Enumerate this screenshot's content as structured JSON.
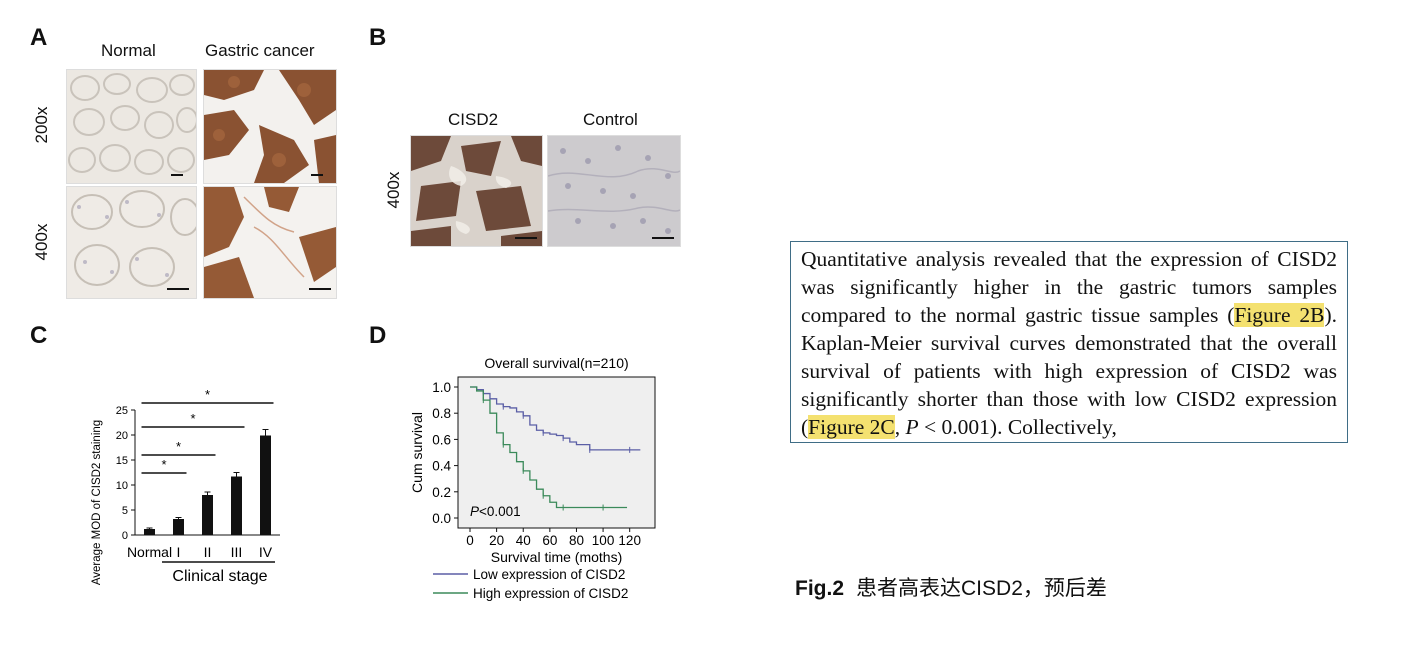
{
  "panel_a": {
    "letter": "A",
    "col_normal": "Normal",
    "col_cancer": "Gastric cancer",
    "row_200": "200x",
    "row_400": "400x"
  },
  "panel_b": {
    "letter": "B",
    "col_cisd2": "CISD2",
    "col_control": "Control",
    "row_400": "400x"
  },
  "panel_c": {
    "letter": "C",
    "ylabel": "Average MOD of CISD2 staining",
    "xlabel": "Clinical stage",
    "sig_marker": "*"
  },
  "panel_d": {
    "letter": "D",
    "title": "Overall survival(n=210)",
    "ylabel": "Cum survival",
    "xlabel": "Survival time (moths)",
    "pvalue": "<0.001",
    "pvalue_prefix": "P",
    "legend_low": "Low expression of CISD2",
    "legend_high": "High expression of CISD2"
  },
  "textbox": {
    "part1": "Quantitative analysis revealed that the expression of CISD2 was significantly higher in the gastric tumors samples compared to the normal gastric tissue samples (",
    "link1": "Figure 2B",
    "part2": "). Kaplan-Meier survival curves demonstrated that the overall survival of patients with high expression of CISD2 was significantly shorter than those with low CISD2 expression (",
    "link2": "Figure 2C",
    "part3": ", ",
    "p_italic": "P",
    "part4": " < 0.001). Collectively,"
  },
  "caption": {
    "fig_label": "Fig.2",
    "text": "患者高表达CISD2，预后差"
  },
  "chart_data": [
    {
      "type": "bar",
      "panel": "C",
      "categories": [
        "Normal",
        "I",
        "II",
        "III",
        "IV"
      ],
      "values": [
        1.2,
        3.2,
        8.0,
        11.7,
        19.9
      ],
      "errors": [
        0.2,
        0.3,
        0.6,
        0.8,
        1.2
      ],
      "ylim": [
        0,
        25
      ],
      "yticks": [
        0,
        5,
        10,
        15,
        20,
        25
      ],
      "ylabel": "Average MOD of CISD2 staining",
      "xlabel": "Clinical stage",
      "significance": [
        {
          "from": "Normal",
          "to": "I",
          "label": "*"
        },
        {
          "from": "Normal",
          "to": "II",
          "label": "*"
        },
        {
          "from": "Normal",
          "to": "III",
          "label": "*"
        },
        {
          "from": "Normal",
          "to": "IV",
          "label": "*"
        }
      ],
      "colors": {
        "bar": "#111111"
      }
    },
    {
      "type": "line",
      "panel": "D",
      "title": "Overall survival(n=210)",
      "xlabel": "Survival time (moths)",
      "ylabel": "Cum survival",
      "xlim": [
        0,
        130
      ],
      "ylim": [
        0,
        1.0
      ],
      "xticks": [
        0,
        20,
        40,
        60,
        80,
        100,
        120
      ],
      "yticks": [
        0.0,
        0.2,
        0.4,
        0.6,
        0.8,
        1.0
      ],
      "background": "#efefef",
      "series": [
        {
          "name": "Low expression of CISD2",
          "color": "#5b5fa6",
          "x": [
            0,
            5,
            10,
            15,
            20,
            25,
            30,
            35,
            40,
            45,
            50,
            55,
            60,
            65,
            70,
            75,
            80,
            90,
            100,
            110,
            120,
            128
          ],
          "y": [
            1.0,
            0.98,
            0.95,
            0.91,
            0.87,
            0.85,
            0.84,
            0.81,
            0.78,
            0.71,
            0.67,
            0.65,
            0.64,
            0.63,
            0.61,
            0.58,
            0.56,
            0.52,
            0.52,
            0.52,
            0.52,
            0.52
          ]
        },
        {
          "name": "High expression of CISD2",
          "color": "#3b8a5a",
          "x": [
            0,
            5,
            10,
            15,
            20,
            25,
            30,
            35,
            40,
            45,
            50,
            55,
            60,
            65,
            70,
            80,
            90,
            100,
            110,
            118
          ],
          "y": [
            1.0,
            0.97,
            0.9,
            0.8,
            0.65,
            0.56,
            0.5,
            0.43,
            0.36,
            0.29,
            0.22,
            0.17,
            0.12,
            0.08,
            0.08,
            0.08,
            0.08,
            0.08,
            0.08,
            0.08
          ]
        }
      ],
      "annotation": "P<0.001"
    }
  ]
}
